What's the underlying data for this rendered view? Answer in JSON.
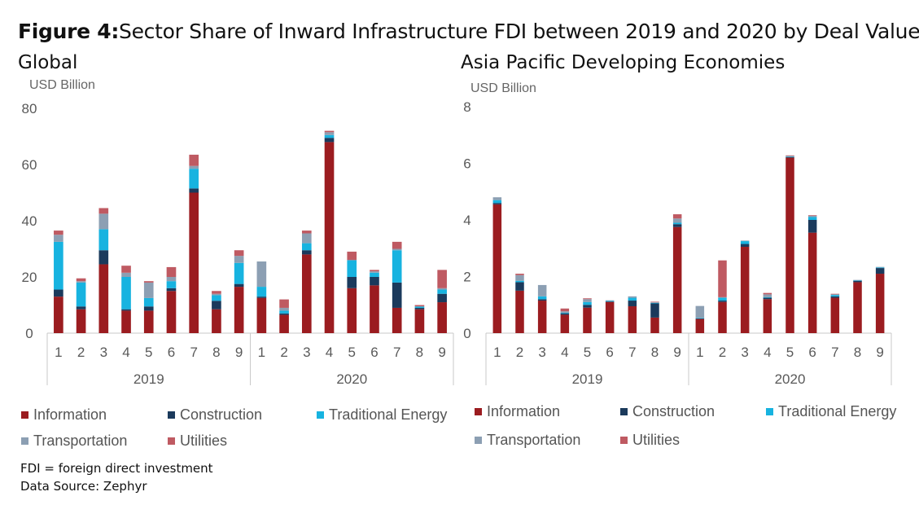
{
  "figure": {
    "label": "Figure 4",
    "label_sep": ":",
    "title": "Sector Share of Inward Infrastructure FDI between 2019 and 2020 by Deal Value"
  },
  "colors": {
    "Information": "#9b1c20",
    "Construction": "#1b3a5c",
    "Traditional Energy": "#17b3e0",
    "Transportation": "#8c9fb3",
    "Utilities": "#bf5a62",
    "axis": "#c9c9c9",
    "tick_text": "#595959"
  },
  "chart_data": [
    {
      "type": "bar",
      "stacked": true,
      "title": "Global",
      "ylabel": "USD Billion",
      "ylim": [
        0,
        80
      ],
      "yticks": [
        0,
        20,
        40,
        60,
        80
      ],
      "grid": false,
      "groups": [
        {
          "label": "2019",
          "categories": [
            "1",
            "2",
            "3",
            "4",
            "5",
            "6",
            "7",
            "8",
            "9"
          ]
        },
        {
          "label": "2020",
          "categories": [
            "1",
            "2",
            "3",
            "4",
            "5",
            "6",
            "7",
            "8",
            "9"
          ]
        }
      ],
      "series": [
        {
          "name": "Information",
          "values": [
            13,
            8.5,
            24.5,
            8,
            8,
            15,
            50,
            8.5,
            16.5,
            12.5,
            6.5,
            28,
            68,
            16,
            17,
            9,
            8.5,
            11
          ]
        },
        {
          "name": "Construction",
          "values": [
            2.5,
            1,
            5,
            0.5,
            1.5,
            1,
            1.5,
            3,
            1,
            0.5,
            0.5,
            1.5,
            1.5,
            4,
            3,
            9,
            0.5,
            3
          ]
        },
        {
          "name": "Traditional Energy",
          "values": [
            17,
            8.5,
            7.5,
            11.5,
            3,
            2.5,
            7,
            2,
            7.5,
            3.5,
            1,
            2.5,
            1,
            6,
            1.5,
            11.5,
            0.5,
            1.5
          ]
        },
        {
          "name": "Transportation",
          "values": [
            2.5,
            0.5,
            5.5,
            1.5,
            5.5,
            1.5,
            1,
            0.5,
            2.5,
            9,
            1,
            3.5,
            1,
            0,
            0.5,
            0.5,
            0,
            0.5
          ]
        },
        {
          "name": "Utilities",
          "values": [
            1.5,
            1,
            2,
            2.5,
            0.5,
            3.5,
            4,
            1,
            2,
            0,
            3,
            1,
            0.5,
            3,
            0.5,
            2.5,
            0.5,
            6.5
          ]
        }
      ],
      "legend_position": "bottom"
    },
    {
      "type": "bar",
      "stacked": true,
      "title": "Asia Pacific Developing Economies",
      "ylabel": "USD Billion",
      "ylim": [
        0,
        8
      ],
      "yticks": [
        0,
        2,
        4,
        6,
        8
      ],
      "grid": false,
      "groups": [
        {
          "label": "2019",
          "categories": [
            "1",
            "2",
            "3",
            "4",
            "5",
            "6",
            "7",
            "8",
            "9"
          ]
        },
        {
          "label": "2020",
          "categories": [
            "1",
            "2",
            "3",
            "4",
            "5",
            "6",
            "7",
            "8",
            "9"
          ]
        }
      ],
      "series": [
        {
          "name": "Information",
          "values": [
            4.55,
            1.5,
            1.15,
            0.65,
            0.9,
            1.1,
            0.95,
            0.55,
            3.75,
            0.5,
            1.1,
            3.05,
            1.2,
            6.2,
            3.55,
            1.25,
            1.8,
            2.1
          ]
        },
        {
          "name": "Construction",
          "values": [
            0.05,
            0.3,
            0.05,
            0.05,
            0.1,
            0.02,
            0.2,
            0.5,
            0.1,
            0.02,
            0.05,
            0.1,
            0.05,
            0.02,
            0.45,
            0.05,
            0.05,
            0.2
          ]
        },
        {
          "name": "Traditional Energy",
          "values": [
            0.1,
            0.05,
            0.1,
            0.02,
            0.1,
            0.02,
            0.1,
            0.02,
            0.05,
            0.02,
            0.1,
            0.1,
            0.02,
            0.02,
            0.1,
            0.05,
            0.02,
            0.02
          ]
        },
        {
          "name": "Transportation",
          "values": [
            0.1,
            0.2,
            0.4,
            0.05,
            0.1,
            0.02,
            0.05,
            0.02,
            0.15,
            0.42,
            0.02,
            0.02,
            0.1,
            0.02,
            0.05,
            0.02,
            0.01,
            0.02
          ]
        },
        {
          "name": "Utilities",
          "values": [
            0,
            0.05,
            0,
            0.1,
            0.03,
            0,
            0,
            0.02,
            0.15,
            0,
            1.3,
            0,
            0.05,
            0.02,
            0.02,
            0.02,
            0,
            0
          ]
        }
      ],
      "legend_position": "bottom"
    }
  ],
  "legend_labels": {
    "information": "Information",
    "construction": "Construction",
    "traditional_energy": "Traditional Energy",
    "transportation": "Transportation",
    "utilities": "Utilities"
  },
  "notes": {
    "abbrev": "FDI = foreign direct investment",
    "source": "Data Source: Zephyr"
  }
}
